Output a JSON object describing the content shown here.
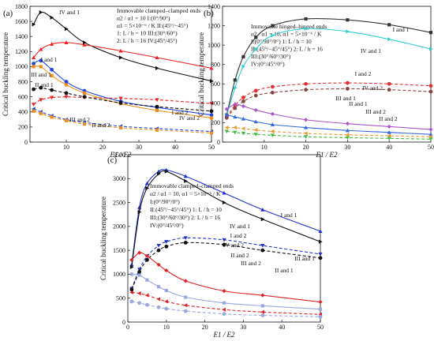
{
  "chart_data": [
    {
      "panel": "(a)",
      "type": "line",
      "xlabel": "E1 / E2",
      "ylabel": "Critical buckling temperature",
      "xlim": [
        0,
        50
      ],
      "ylim": [
        0,
        1800
      ],
      "xticks": [
        10,
        20,
        30,
        40,
        50
      ],
      "yticks": [
        0,
        200,
        400,
        600,
        800,
        1000,
        1200,
        1400,
        1600,
        1800
      ],
      "info": [
        "Immovable clamped–clamped ends",
        "α2 / α1 = 10      I:(0°/90°)",
        "α1 = 5×10⁻⁶ / K   II:(45°/−45°)",
        "1: L / h = 10       III:(30°/60°)",
        "2: L / h = 16       IV:(45°/45°)"
      ],
      "curve_labels": [
        "IV and 1",
        "I and 1",
        "III and 1",
        "II and 1",
        "I and 2",
        "IV and 2",
        "III and 2",
        "II and 2"
      ],
      "series": [
        {
          "name": "IV and 1",
          "color": "#111111",
          "marker": "tri-right",
          "dashed": false,
          "x": [
            1,
            3,
            6,
            10,
            15,
            25,
            35,
            50
          ],
          "y": [
            1560,
            1720,
            1650,
            1500,
            1320,
            1120,
            980,
            810
          ]
        },
        {
          "name": "I and 1",
          "color": "#ee2222",
          "marker": "tri-up",
          "dashed": false,
          "x": [
            1,
            3,
            6,
            10,
            15,
            25,
            35,
            50
          ],
          "y": [
            1120,
            1230,
            1300,
            1320,
            1290,
            1210,
            1120,
            980
          ]
        },
        {
          "name": "III and 1",
          "color": "#2244dd",
          "marker": "circle",
          "dashed": false,
          "x": [
            1,
            3,
            6,
            10,
            15,
            25,
            35,
            50
          ],
          "y": [
            1040,
            1080,
            960,
            800,
            680,
            540,
            460,
            360
          ]
        },
        {
          "name": "II and 1",
          "color": "#f08c1a",
          "marker": "square",
          "dashed": false,
          "x": [
            1,
            3,
            6,
            10,
            15,
            25,
            35,
            50
          ],
          "y": [
            1000,
            1000,
            880,
            760,
            650,
            510,
            420,
            320
          ]
        },
        {
          "name": "I and 2",
          "color": "#ee2222",
          "marker": "tri-down",
          "dashed": true,
          "x": [
            1,
            3,
            6,
            10,
            15,
            25,
            35,
            50
          ],
          "y": [
            500,
            560,
            590,
            600,
            590,
            580,
            560,
            510
          ]
        },
        {
          "name": "IV and 2",
          "color": "#111111",
          "marker": "circle",
          "dashed": true,
          "x": [
            1,
            3,
            6,
            10,
            15,
            25,
            35,
            50
          ],
          "y": [
            700,
            720,
            690,
            650,
            600,
            520,
            470,
            410
          ]
        },
        {
          "name": "III and 2",
          "color": "#2244dd",
          "marker": "tri-left",
          "dashed": true,
          "x": [
            1,
            3,
            6,
            10,
            15,
            25,
            35,
            50
          ],
          "y": [
            440,
            400,
            350,
            300,
            260,
            210,
            180,
            140
          ]
        },
        {
          "name": "II and 2",
          "color": "#f08c1a",
          "marker": "square",
          "dashed": true,
          "x": [
            1,
            3,
            6,
            10,
            15,
            25,
            35,
            50
          ],
          "y": [
            410,
            380,
            330,
            285,
            240,
            190,
            160,
            120
          ]
        }
      ]
    },
    {
      "panel": "(b)",
      "type": "line",
      "xlabel": "E1 / E2",
      "ylabel": "Critical buckling temperature",
      "xlim": [
        0,
        50
      ],
      "ylim": [
        0,
        1400
      ],
      "xticks": [
        10,
        20,
        30,
        40,
        50
      ],
      "yticks": [
        0,
        200,
        400,
        600,
        800,
        1000,
        1200,
        1400
      ],
      "info": [
        "Immovable  hinged–hinged ends",
        "α2 / α1 = 10,  α1 = 5×10⁻⁶ / K",
        "I:(0°/90°/0°)          1: L / h = 10",
        "II:(45°/−45°/45°)    2: L / h = 16",
        "III:(30°/60°/30°)",
        "IV:(0°/45°/0°)"
      ],
      "curve_labels": [
        "I and 1",
        "IV and 1",
        "I and 2",
        "IV and 2",
        "III and 1",
        "II and 1",
        "III and 2",
        "II and 2"
      ],
      "series": [
        {
          "name": "I and 1",
          "color": "#333333",
          "marker": "square",
          "dashed": false,
          "x": [
            1,
            3,
            5,
            8,
            12,
            20,
            30,
            40,
            50
          ],
          "y": [
            280,
            640,
            880,
            1080,
            1200,
            1270,
            1260,
            1210,
            1130
          ]
        },
        {
          "name": "IV and 1",
          "color": "#33cccc",
          "marker": "tri-right",
          "dashed": false,
          "x": [
            1,
            3,
            5,
            8,
            12,
            20,
            30,
            40,
            50
          ],
          "y": [
            270,
            560,
            780,
            960,
            1100,
            1170,
            1140,
            1060,
            960
          ]
        },
        {
          "name": "I and 2",
          "color": "#dd3333",
          "marker": "circle",
          "dashed": true,
          "x": [
            1,
            3,
            5,
            8,
            12,
            20,
            30,
            40,
            50
          ],
          "y": [
            260,
            380,
            460,
            530,
            570,
            600,
            610,
            600,
            580
          ]
        },
        {
          "name": "IV and 2",
          "color": "#884444",
          "marker": "circle",
          "dashed": true,
          "x": [
            1,
            3,
            5,
            8,
            12,
            20,
            30,
            40,
            50
          ],
          "y": [
            250,
            350,
            420,
            480,
            510,
            540,
            550,
            540,
            520
          ]
        },
        {
          "name": "III and 1",
          "color": "#aa55cc",
          "marker": "diamond",
          "dashed": false,
          "x": [
            1,
            3,
            5,
            8,
            12,
            20,
            30,
            40,
            50
          ],
          "y": [
            340,
            390,
            370,
            330,
            290,
            230,
            190,
            160,
            130
          ]
        },
        {
          "name": "II and 1",
          "color": "#3366dd",
          "marker": "tri-up",
          "dashed": false,
          "x": [
            1,
            3,
            5,
            8,
            12,
            20,
            30,
            40,
            50
          ],
          "y": [
            280,
            260,
            240,
            210,
            180,
            150,
            120,
            100,
            80
          ]
        },
        {
          "name": "III and 2",
          "color": "#e69a30",
          "marker": "tri-left",
          "dashed": true,
          "x": [
            1,
            3,
            5,
            8,
            12,
            20,
            30,
            40,
            50
          ],
          "y": [
            150,
            150,
            140,
            125,
            110,
            90,
            75,
            65,
            55
          ]
        },
        {
          "name": "II and 2",
          "color": "#44bb44",
          "marker": "tri-down",
          "dashed": true,
          "x": [
            1,
            3,
            5,
            8,
            12,
            20,
            30,
            40,
            50
          ],
          "y": [
            110,
            100,
            90,
            80,
            70,
            55,
            45,
            38,
            30
          ]
        }
      ]
    },
    {
      "panel": "(c)",
      "type": "line",
      "xlabel": "E1 / E2",
      "ylabel": "Critical buckling temperature",
      "xlim": [
        0,
        50
      ],
      "ylim": [
        0,
        3500
      ],
      "xticks": [
        0,
        10,
        20,
        30,
        40,
        50
      ],
      "yticks": [
        0,
        500,
        1000,
        1500,
        2000,
        2500,
        3000,
        3500
      ],
      "info": [
        "Immovable  clamped–clamped ends",
        "α2 / α1 = 10,  α1 = 5×10⁻⁶ / K",
        "I:(0°/90°/0°)",
        "II:(45°/−45°/45°)   1: L / h = 10",
        "III:(30°/60°/30°)   2: L / h = 16",
        "IV:(0°/45°/0°)"
      ],
      "curve_labels": [
        "I and 1",
        "IV and 1",
        "I and 2",
        "IV and 2",
        "II and 2",
        "III and 2",
        "II and 1",
        "III and 1"
      ],
      "series": [
        {
          "name": "I and 1",
          "color": "#2233cc",
          "marker": "tri-up",
          "dashed": false,
          "x": [
            1,
            3,
            5,
            8,
            10,
            15,
            25,
            35,
            50
          ],
          "y": [
            1200,
            2400,
            2900,
            3150,
            3180,
            3050,
            2700,
            2350,
            1900
          ]
        },
        {
          "name": "IV and 1",
          "color": "#111111",
          "marker": "tri-right",
          "dashed": false,
          "x": [
            1,
            3,
            5,
            8,
            10,
            15,
            25,
            35,
            50
          ],
          "y": [
            1150,
            2300,
            2800,
            3100,
            3150,
            2950,
            2500,
            2150,
            1680
          ]
        },
        {
          "name": "I and 2",
          "color": "#2233cc",
          "marker": "tri-down",
          "dashed": true,
          "x": [
            1,
            3,
            5,
            8,
            10,
            15,
            25,
            35,
            50
          ],
          "y": [
            700,
            1100,
            1380,
            1600,
            1680,
            1760,
            1720,
            1600,
            1420
          ]
        },
        {
          "name": "IV and 2",
          "color": "#111111",
          "marker": "circle",
          "dashed": true,
          "x": [
            1,
            3,
            5,
            8,
            10,
            15,
            25,
            35,
            50
          ],
          "y": [
            680,
            1050,
            1300,
            1500,
            1580,
            1660,
            1620,
            1500,
            1340
          ]
        },
        {
          "name": "II and 1",
          "color": "#e02222",
          "marker": "diamond",
          "dashed": false,
          "x": [
            1,
            3,
            5,
            8,
            10,
            15,
            25,
            35,
            50
          ],
          "y": [
            1300,
            1450,
            1380,
            1200,
            1080,
            860,
            650,
            560,
            420
          ]
        },
        {
          "name": "III and 1",
          "color": "#9aa6e0",
          "marker": "square",
          "dashed": false,
          "x": [
            1,
            3,
            5,
            8,
            10,
            15,
            25,
            35,
            50
          ],
          "y": [
            1000,
            980,
            880,
            740,
            660,
            520,
            400,
            340,
            270
          ]
        },
        {
          "name": "II and 2",
          "color": "#e02222",
          "marker": "tri-left",
          "dashed": true,
          "x": [
            1,
            3,
            5,
            8,
            10,
            15,
            25,
            35,
            50
          ],
          "y": [
            620,
            600,
            560,
            480,
            430,
            350,
            260,
            210,
            160
          ]
        },
        {
          "name": "III and 2",
          "color": "#9aa6e0",
          "marker": "circle",
          "dashed": true,
          "x": [
            1,
            3,
            5,
            8,
            10,
            15,
            25,
            35,
            50
          ],
          "y": [
            430,
            400,
            360,
            310,
            280,
            230,
            170,
            140,
            110
          ]
        }
      ]
    }
  ]
}
